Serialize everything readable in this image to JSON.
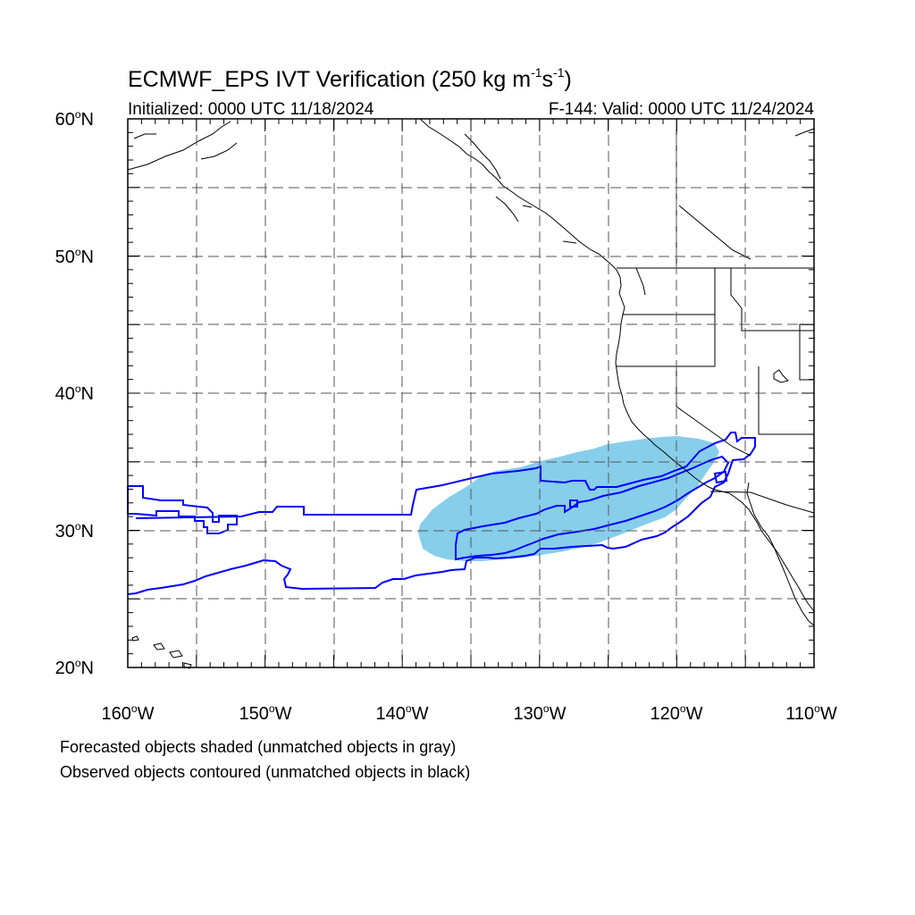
{
  "title": {
    "main": "ECMWF_EPS IVT Verification (250 kg m",
    "exp1": "-1",
    "mid": "s",
    "exp2": "-1",
    "end": ")"
  },
  "subtitle": {
    "left": "Initialized: 0000 UTC 11/18/2024",
    "right": "F-144: Valid: 0000 UTC 11/24/2024"
  },
  "map": {
    "lon_range": [
      -160,
      -110
    ],
    "lat_range": [
      20,
      60
    ],
    "lon_labels": [
      {
        "deg": "160",
        "hem": "W"
      },
      {
        "deg": "150",
        "hem": "W"
      },
      {
        "deg": "140",
        "hem": "W"
      },
      {
        "deg": "130",
        "hem": "W"
      },
      {
        "deg": "120",
        "hem": "W"
      },
      {
        "deg": "110",
        "hem": "W"
      }
    ],
    "lat_labels": [
      {
        "deg": "20",
        "hem": "N"
      },
      {
        "deg": "30",
        "hem": "N"
      },
      {
        "deg": "40",
        "hem": "N"
      },
      {
        "deg": "50",
        "hem": "N"
      },
      {
        "deg": "60",
        "hem": "N"
      }
    ],
    "forecast_fill_color": "#87ceeb",
    "observed_contour_color": "#0000ff",
    "coastline_color": "#000000",
    "grid_color": "#555555"
  },
  "legend": {
    "line1": "Forecasted objects shaded (unmatched objects in gray)",
    "line2": "Observed objects contoured (unmatched objects in black)"
  }
}
